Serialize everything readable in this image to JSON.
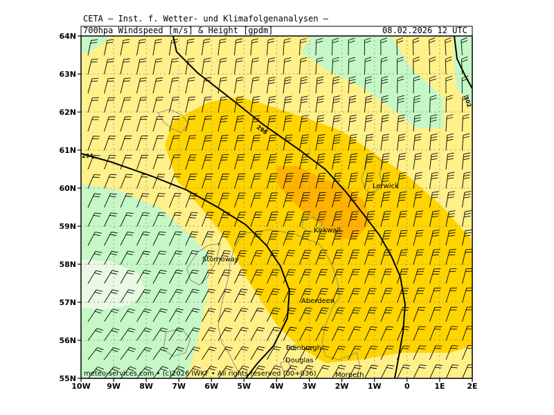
{
  "header": {
    "institute": "CETA — Inst. f. Wetter- und Klimafolgenanalysen —",
    "product": "700hpa Windspeed [m/s] & Height [gpdm]",
    "datetime": "08.02.2026 12 UTC"
  },
  "map": {
    "lon_labels": [
      "10W",
      "9W",
      "8W",
      "7W",
      "6W",
      "5W",
      "4W",
      "3W",
      "2W",
      "1W",
      "0",
      "1E",
      "2E"
    ],
    "lat_labels": [
      "64N",
      "63N",
      "62N",
      "61N",
      "60N",
      "59N",
      "58N",
      "57N",
      "56N",
      "55N"
    ],
    "contour_labels": [
      "294",
      "298",
      "302"
    ],
    "cities": [
      "Lerwick",
      "Kirkwall",
      "Stornoway",
      "Aberdeen",
      "Edinburgh",
      "Douglas",
      "Morpeth"
    ],
    "colors": {
      "very_light_green": "#e9f9e4",
      "light_green": "#c6f7c6",
      "light_yellow": "#fff08a",
      "yellow": "#ffd400",
      "orange": "#ffb300",
      "coast": "#7a7a7a",
      "contour": "#000000"
    }
  },
  "footer": {
    "credit": "meteo-services.com • (c)2026 IWKF • All rights reserved (00+036)"
  }
}
